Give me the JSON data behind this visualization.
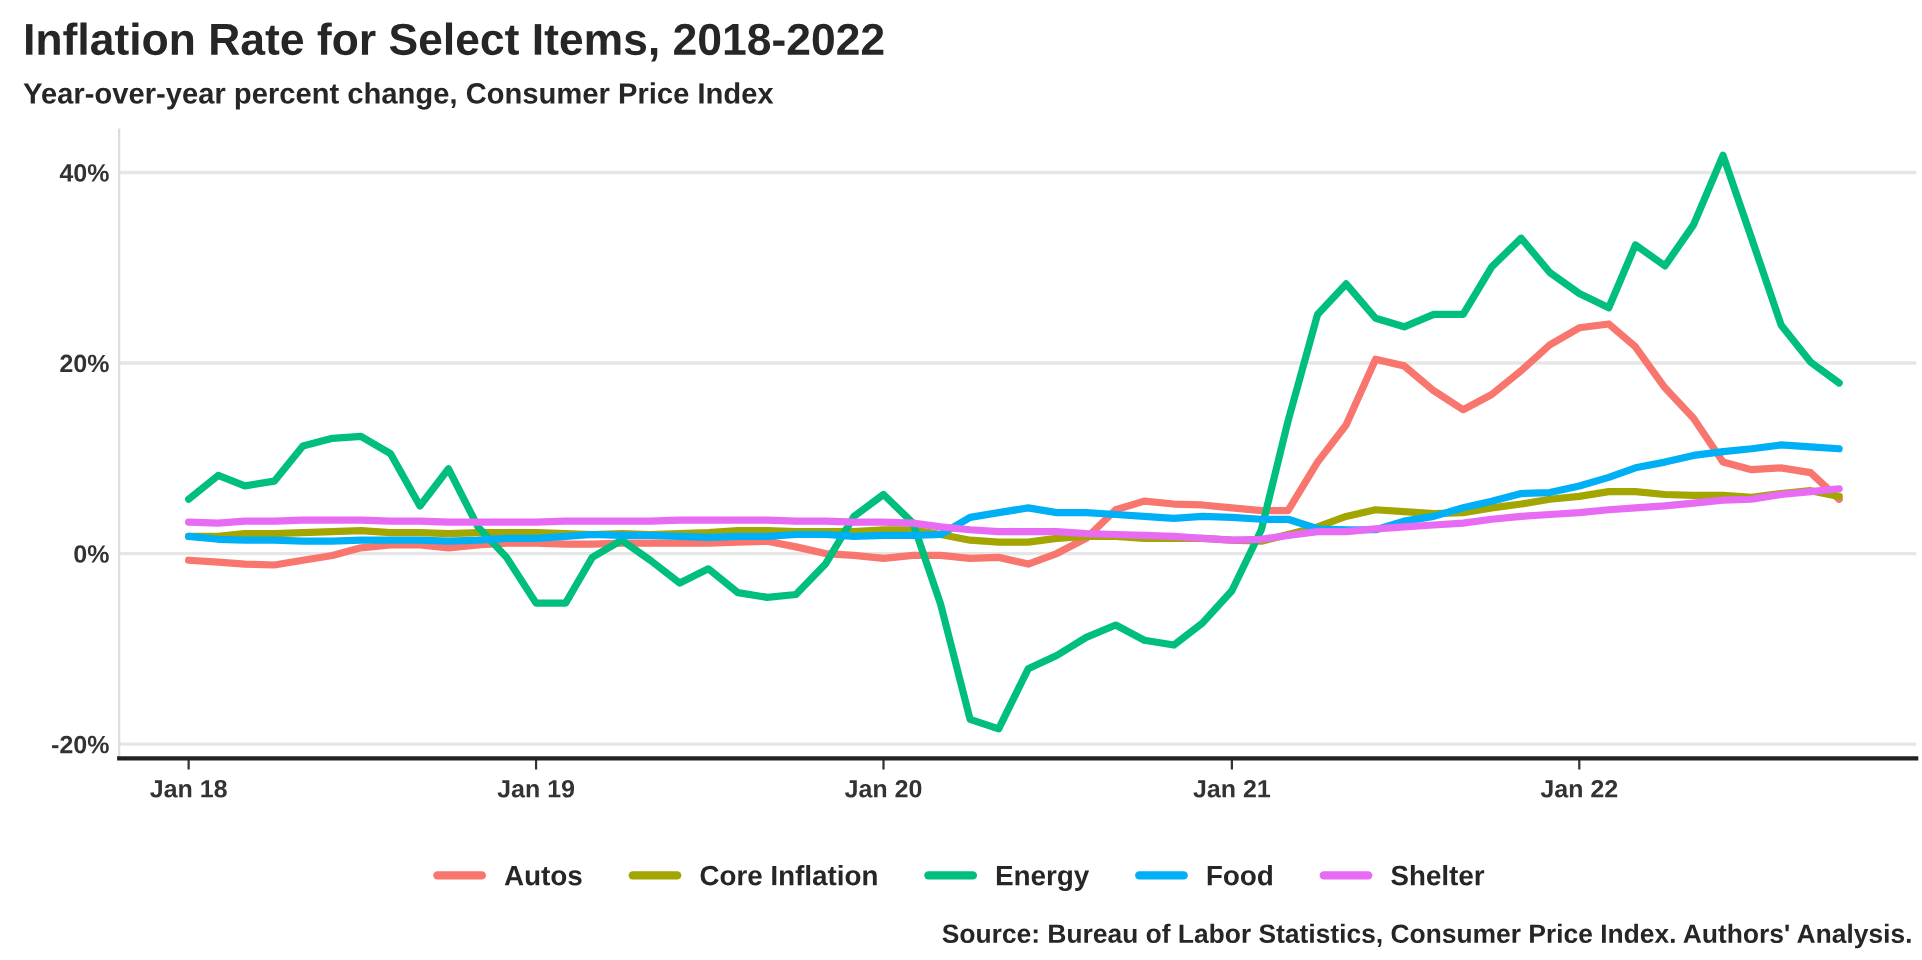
{
  "chart_data": {
    "type": "line",
    "title": "Inflation Rate for Select Items, 2018-2022",
    "subtitle": "Year-over-year percent change, Consumer Price Index",
    "annotations": [
      "Source: Bureau of Labor Statistics, Consumer Price Index. Authors' Analysis."
    ],
    "x": [
      "2018-01",
      "2018-02",
      "2018-03",
      "2018-04",
      "2018-05",
      "2018-06",
      "2018-07",
      "2018-08",
      "2018-09",
      "2018-10",
      "2018-11",
      "2018-12",
      "2019-01",
      "2019-02",
      "2019-03",
      "2019-04",
      "2019-05",
      "2019-06",
      "2019-07",
      "2019-08",
      "2019-09",
      "2019-10",
      "2019-11",
      "2019-12",
      "2020-01",
      "2020-02",
      "2020-03",
      "2020-04",
      "2020-05",
      "2020-06",
      "2020-07",
      "2020-08",
      "2020-09",
      "2020-10",
      "2020-11",
      "2020-12",
      "2021-01",
      "2021-02",
      "2021-03",
      "2021-04",
      "2021-05",
      "2021-06",
      "2021-07",
      "2021-08",
      "2021-09",
      "2021-10",
      "2021-11",
      "2021-12",
      "2022-01",
      "2022-02",
      "2022-03",
      "2022-04",
      "2022-05",
      "2022-06",
      "2022-07",
      "2022-08",
      "2022-09",
      "2022-10"
    ],
    "series": [
      {
        "name": "Autos",
        "color": "#f8766d",
        "values": [
          -0.7,
          -0.9,
          -1.1,
          -1.2,
          -0.7,
          -0.2,
          0.6,
          0.9,
          0.9,
          0.6,
          0.9,
          1.1,
          1.1,
          1.0,
          1.0,
          1.1,
          1.1,
          1.1,
          1.1,
          1.2,
          1.3,
          0.7,
          0.0,
          -0.2,
          -0.5,
          -0.2,
          -0.2,
          -0.5,
          -0.4,
          -1.1,
          0.0,
          1.6,
          4.6,
          5.5,
          5.2,
          5.1,
          4.8,
          4.5,
          4.5,
          9.6,
          13.5,
          20.4,
          19.7,
          17.1,
          15.1,
          16.7,
          19.2,
          21.9,
          23.7,
          24.1,
          21.7,
          17.4,
          14.2,
          9.6,
          8.8,
          9.0,
          8.5,
          5.7
        ]
      },
      {
        "name": "Core Inflation",
        "color": "#a3a500",
        "values": [
          1.8,
          1.8,
          2.1,
          2.1,
          2.2,
          2.3,
          2.4,
          2.2,
          2.2,
          2.1,
          2.2,
          2.2,
          2.2,
          2.1,
          2.0,
          2.1,
          2.0,
          2.1,
          2.2,
          2.4,
          2.4,
          2.3,
          2.3,
          2.3,
          2.5,
          2.5,
          2.0,
          1.4,
          1.2,
          1.2,
          1.6,
          1.8,
          1.8,
          1.6,
          1.6,
          1.6,
          1.4,
          1.3,
          2.0,
          2.8,
          3.9,
          4.6,
          4.4,
          4.2,
          4.3,
          4.8,
          5.2,
          5.7,
          6.0,
          6.5,
          6.5,
          6.2,
          6.1,
          6.1,
          5.9,
          6.3,
          6.6,
          6.0
        ]
      },
      {
        "name": "Energy",
        "color": "#00bf7d",
        "values": [
          5.7,
          8.2,
          7.1,
          7.6,
          11.3,
          12.1,
          12.3,
          10.5,
          5.0,
          8.9,
          2.8,
          -0.4,
          -5.2,
          -5.2,
          -0.4,
          1.4,
          -0.7,
          -3.1,
          -1.6,
          -4.1,
          -4.6,
          -4.3,
          -1.1,
          3.9,
          6.2,
          3.2,
          -5.3,
          -17.4,
          -18.4,
          -12.1,
          -10.7,
          -8.8,
          -7.5,
          -9.1,
          -9.6,
          -7.3,
          -3.9,
          2.5,
          13.9,
          25.1,
          28.3,
          24.7,
          23.8,
          25.1,
          25.1,
          30.1,
          33.1,
          29.5,
          27.3,
          25.8,
          32.4,
          30.2,
          34.5,
          41.8,
          33.1,
          24.0,
          20.1,
          17.9
        ]
      },
      {
        "name": "Food",
        "color": "#00b0f6",
        "values": [
          1.8,
          1.5,
          1.4,
          1.4,
          1.3,
          1.3,
          1.4,
          1.4,
          1.4,
          1.3,
          1.4,
          1.6,
          1.6,
          1.8,
          2.0,
          1.9,
          1.9,
          1.8,
          1.7,
          1.8,
          1.8,
          2.0,
          2.0,
          1.8,
          1.9,
          1.9,
          2.0,
          3.8,
          4.3,
          4.8,
          4.3,
          4.3,
          4.1,
          3.9,
          3.7,
          3.9,
          3.8,
          3.6,
          3.6,
          2.6,
          2.5,
          2.5,
          3.4,
          3.9,
          4.8,
          5.5,
          6.3,
          6.4,
          7.1,
          8.0,
          9.0,
          9.6,
          10.3,
          10.7,
          11.0,
          11.4,
          11.2,
          11.0
        ]
      },
      {
        "name": "Shelter",
        "color": "#e76bf3",
        "values": [
          3.3,
          3.2,
          3.4,
          3.4,
          3.5,
          3.5,
          3.5,
          3.4,
          3.4,
          3.3,
          3.3,
          3.3,
          3.3,
          3.4,
          3.4,
          3.4,
          3.4,
          3.5,
          3.5,
          3.5,
          3.5,
          3.4,
          3.4,
          3.3,
          3.3,
          3.2,
          2.8,
          2.5,
          2.3,
          2.3,
          2.3,
          2.1,
          2.0,
          1.9,
          1.8,
          1.6,
          1.4,
          1.5,
          1.9,
          2.3,
          2.3,
          2.6,
          2.8,
          3.0,
          3.2,
          3.6,
          3.9,
          4.1,
          4.3,
          4.6,
          4.8,
          5.0,
          5.3,
          5.6,
          5.7,
          6.2,
          6.5,
          6.8
        ]
      }
    ],
    "xlim": [
      "2017-10-20",
      "2022-12-21"
    ],
    "xticks": [
      {
        "value": "2018-01-01",
        "label": "Jan 18"
      },
      {
        "value": "2019-01-01",
        "label": "Jan 19"
      },
      {
        "value": "2020-01-01",
        "label": "Jan 20"
      },
      {
        "value": "2021-01-01",
        "label": "Jan 21"
      },
      {
        "value": "2022-01-01",
        "label": "Jan 22"
      }
    ],
    "ylim": [
      -21.5,
      44.5
    ],
    "yticks": [
      {
        "value": -20,
        "label": "-20%"
      },
      {
        "value": 0,
        "label": "0%"
      },
      {
        "value": 20,
        "label": "20%"
      },
      {
        "value": 40,
        "label": "40%"
      }
    ],
    "grid": "y",
    "legend": "bottom",
    "line_style": "solid",
    "marker": "none"
  }
}
